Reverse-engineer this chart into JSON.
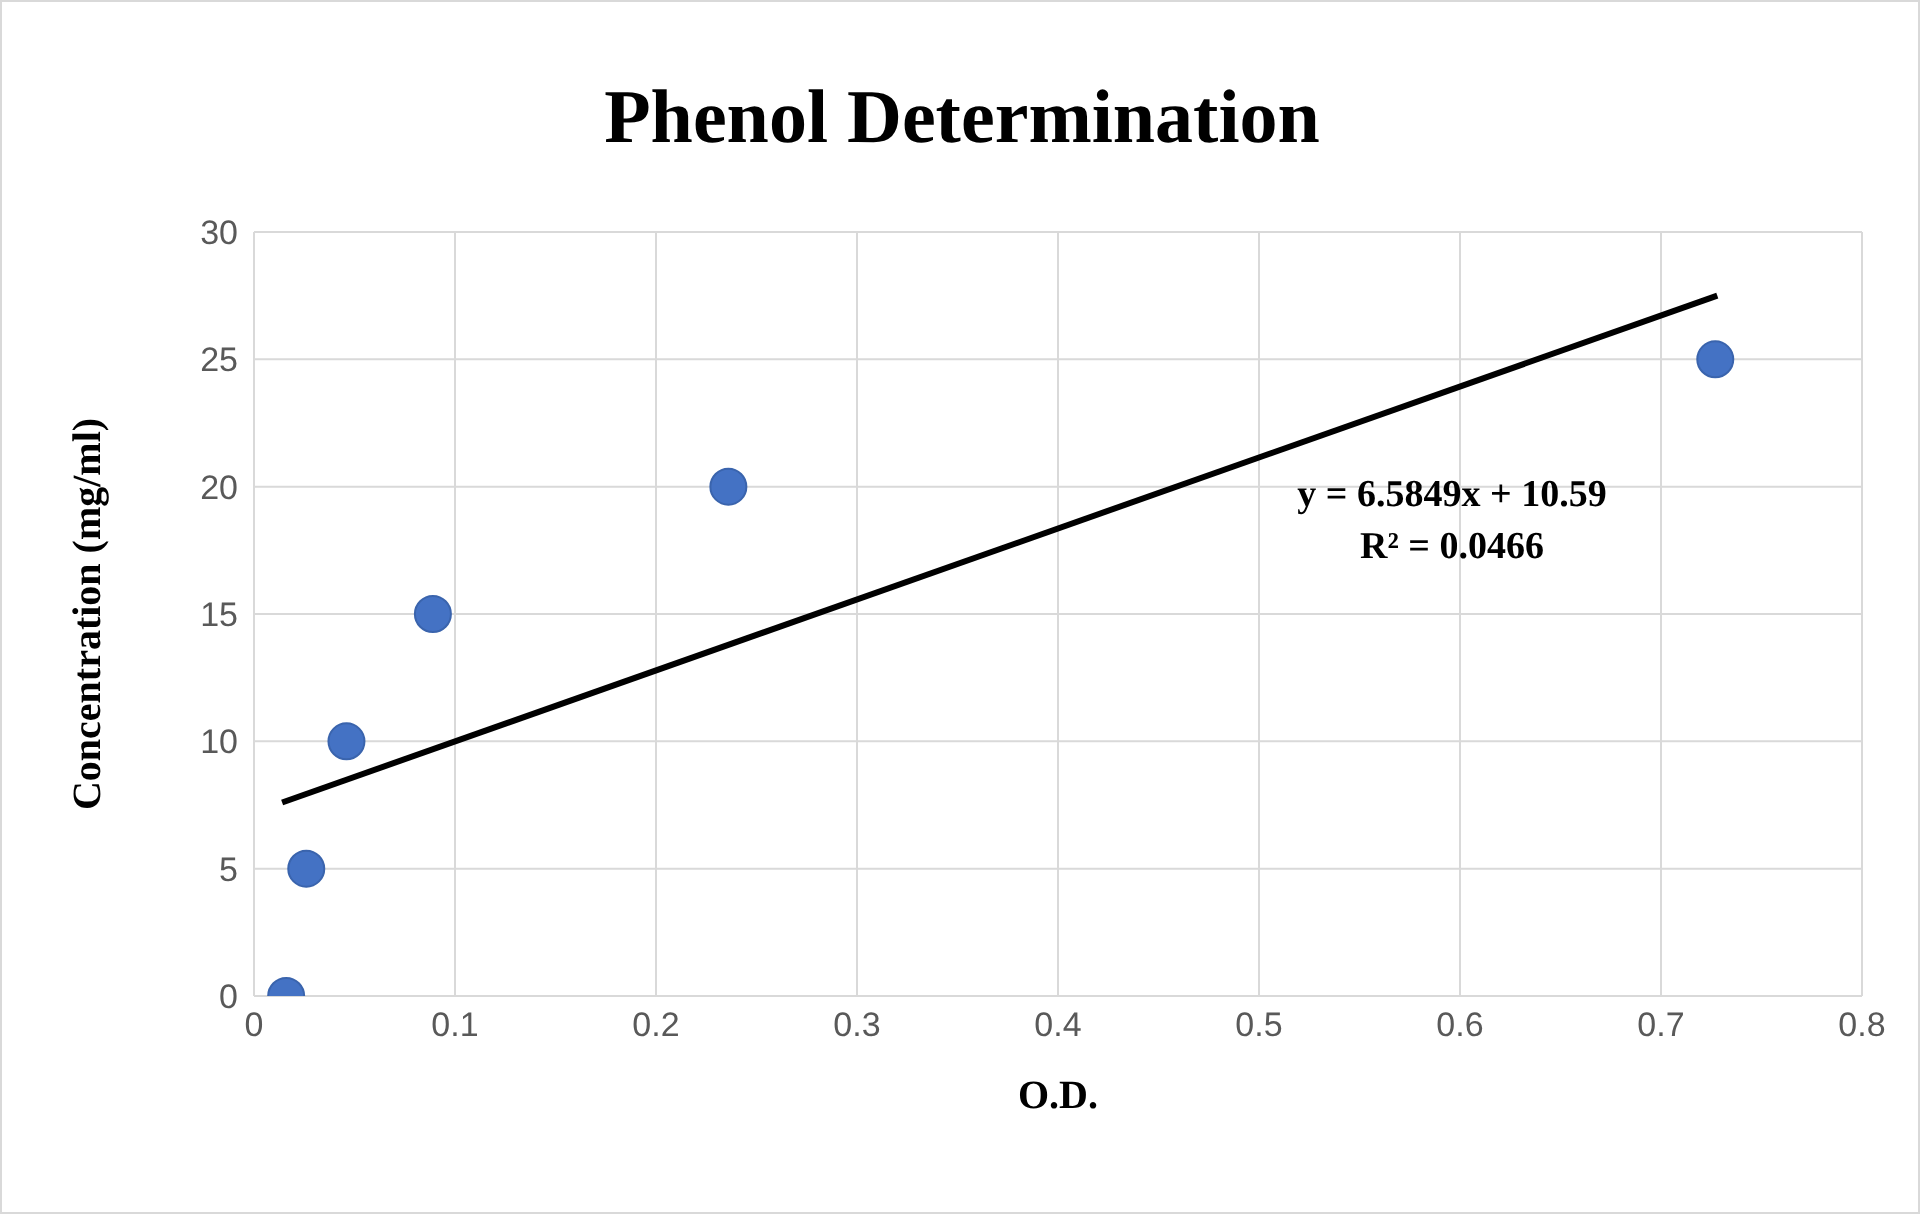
{
  "chart_data": {
    "type": "scatter",
    "title": "Phenol Determination",
    "xlabel": "O.D.",
    "ylabel": "Concentration (mg/ml)",
    "annotations": [
      "y = 6.5849x + 10.59",
      "R² = 0.0466"
    ],
    "xlim": [
      0,
      0.8
    ],
    "xticks": [
      0,
      0.1,
      0.2,
      0.3,
      0.4,
      0.5,
      0.6,
      0.7,
      0.8
    ],
    "ylim": [
      0,
      30
    ],
    "yticks": [
      0,
      5,
      10,
      15,
      20,
      25,
      30
    ],
    "grid": true,
    "series": [
      {
        "color": "#4472c4",
        "marker": "circle",
        "x": [
          0.016,
          0.026,
          0.046,
          0.089,
          0.236,
          0.727
        ],
        "values": [
          0,
          5,
          10,
          15,
          20,
          25
        ]
      },
      {
        "type": "line",
        "color": "#000000",
        "marker": "none",
        "x": [
          0.014,
          0.728
        ],
        "values": [
          7.6,
          27.5
        ]
      }
    ]
  }
}
